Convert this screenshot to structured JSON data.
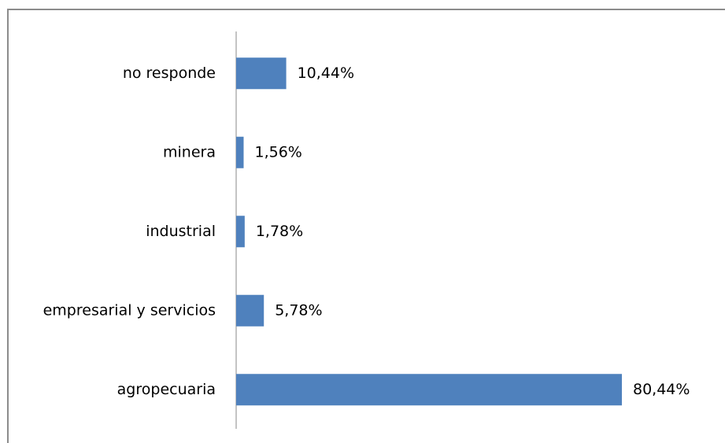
{
  "chart_data": {
    "type": "barh",
    "categories": [
      "no responde",
      "minera",
      "industrial",
      "empresarial y servicios",
      "agropecuaria"
    ],
    "values": [
      10.44,
      1.56,
      1.78,
      5.78,
      80.44
    ],
    "value_labels": [
      "10,44%",
      "1,56%",
      "1,78%",
      "5,78%",
      "80,44%"
    ],
    "color": "#4f81bd"
  }
}
